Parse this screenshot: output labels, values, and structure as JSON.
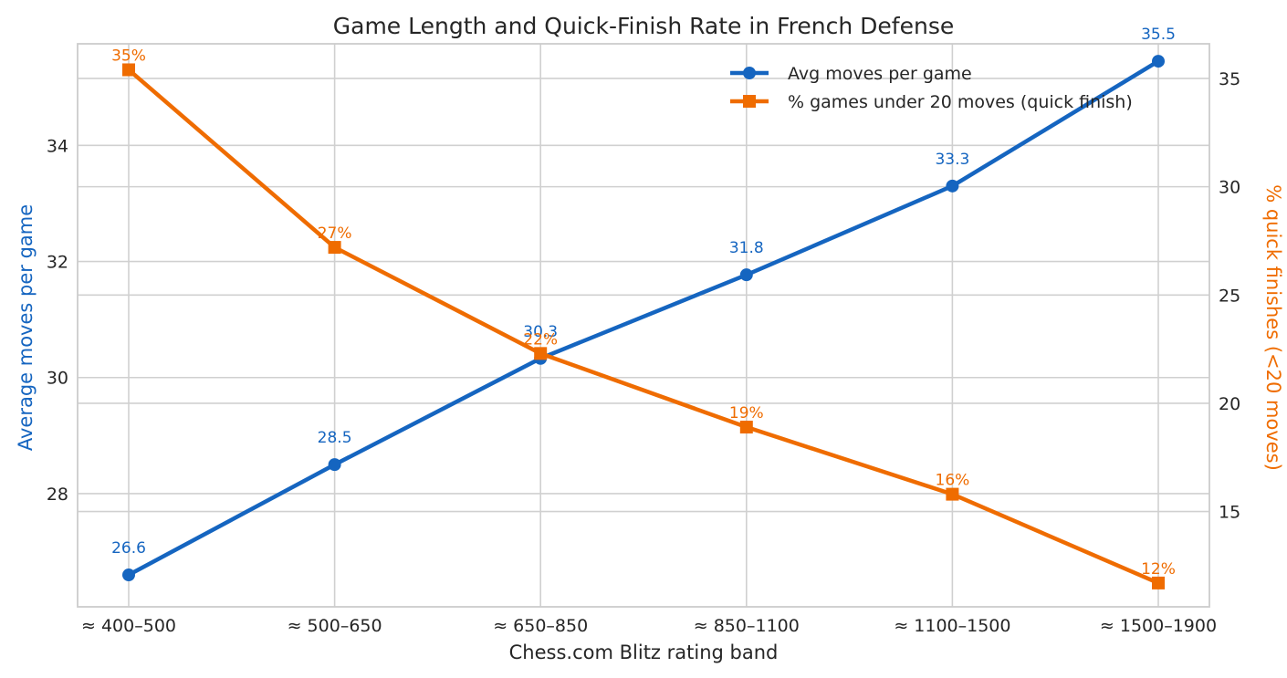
{
  "chart_data": {
    "type": "line",
    "title": "Game Length and Quick-Finish Rate in French Defense",
    "xlabel": "Chess.com Blitz rating band",
    "ylabel_left": "Average moves per game",
    "ylabel_right": "% quick finishes (<20 moves)",
    "categories": [
      "≈ 400–500",
      "≈ 500–650",
      "≈ 650–850",
      "≈ 850–1100",
      "≈ 1100–1500",
      "≈ 1500–1900"
    ],
    "ylim_left": [
      26.05,
      35.75
    ],
    "ylim_right": [
      10.6,
      36.6
    ],
    "yticks_left": [
      28,
      30,
      32,
      34
    ],
    "yticks_right": [
      15,
      20,
      25,
      30,
      35
    ],
    "grid": true,
    "legend_position": "top-right",
    "series": [
      {
        "name": "Avg moves per game",
        "axis": "left",
        "marker": "circle",
        "color": "#1565c0",
        "values": [
          26.6,
          28.5,
          30.33,
          31.77,
          33.3,
          35.45
        ],
        "labels": [
          "26.6",
          "28.5",
          "30.3",
          "31.8",
          "33.3",
          "35.5"
        ]
      },
      {
        "name": "% games under 20 moves (quick finish)",
        "axis": "right",
        "marker": "square",
        "color": "#ef6c00",
        "values": [
          35.4,
          27.2,
          22.3,
          18.9,
          15.8,
          11.7
        ],
        "labels": [
          "35%",
          "27%",
          "22%",
          "19%",
          "16%",
          "12%"
        ]
      }
    ]
  }
}
